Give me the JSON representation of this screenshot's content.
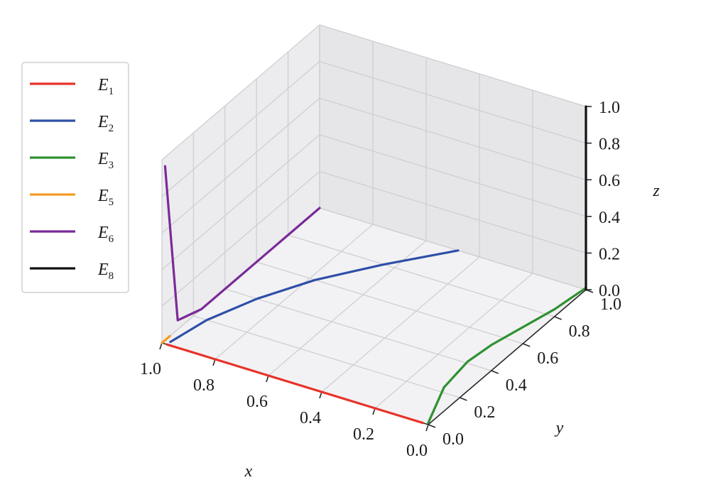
{
  "chart_data": {
    "type": "line",
    "projection": "3d",
    "xlabel": "x",
    "ylabel": "y",
    "zlabel": "z",
    "xlim": [
      0,
      1
    ],
    "ylim": [
      0,
      1
    ],
    "zlim": [
      0,
      1
    ],
    "x_ticks": [
      "1.0",
      "0.8",
      "0.6",
      "0.4",
      "0.2",
      "0.0"
    ],
    "y_ticks": [
      "0.0",
      "0.2",
      "0.4",
      "0.6",
      "0.8",
      "1.0"
    ],
    "z_ticks": [
      "0.0",
      "0.2",
      "0.4",
      "0.6",
      "0.8",
      "1.0"
    ],
    "grid": true,
    "legend_position": "left",
    "series": [
      {
        "name": "E",
        "sub": "1",
        "color": "#e8332a",
        "x": [
          0.98,
          0.8,
          0.6,
          0.4,
          0.2,
          0.02
        ],
        "y": [
          0,
          0,
          0,
          0,
          0,
          0
        ],
        "z": [
          0,
          0,
          0,
          0,
          0,
          0
        ]
      },
      {
        "name": "E",
        "sub": "2",
        "color": "#2f4fa8",
        "x": [
          0.98,
          0.95,
          0.88,
          0.78,
          0.64,
          0.48
        ],
        "y": [
          0.02,
          0.2,
          0.4,
          0.6,
          0.8,
          1.0
        ],
        "z": [
          0,
          0,
          0,
          0,
          0,
          0
        ]
      },
      {
        "name": "E",
        "sub": "3",
        "color": "#2e9130",
        "x": [
          0,
          0,
          0,
          0,
          0,
          0,
          0
        ],
        "y": [
          0,
          0.1,
          0.25,
          0.4,
          0.6,
          0.8,
          1.0
        ],
        "z": [
          0.01,
          0.13,
          0.16,
          0.14,
          0.09,
          0.04,
          0.01
        ]
      },
      {
        "name": "E",
        "sub": "5",
        "color": "#f59a23",
        "x": [
          1.0,
          1.0
        ],
        "y": [
          0,
          0.05
        ],
        "z": [
          0,
          0
        ]
      },
      {
        "name": "E",
        "sub": "6",
        "color": "#7b2a99",
        "x": [
          1.0,
          1.0,
          1.0,
          1.0,
          1.0,
          1.0,
          1.0
        ],
        "y": [
          1.0,
          0.9,
          0.75,
          0.5,
          0.25,
          0.1,
          0.02
        ],
        "z": [
          0.0,
          0.0,
          0.0,
          0.0,
          0.0,
          0.05,
          0.95
        ]
      },
      {
        "name": "E",
        "sub": "8",
        "color": "#111111",
        "x": [
          0,
          0
        ],
        "y": [
          1.0,
          1.0
        ],
        "z": [
          0,
          1.0
        ]
      }
    ]
  }
}
